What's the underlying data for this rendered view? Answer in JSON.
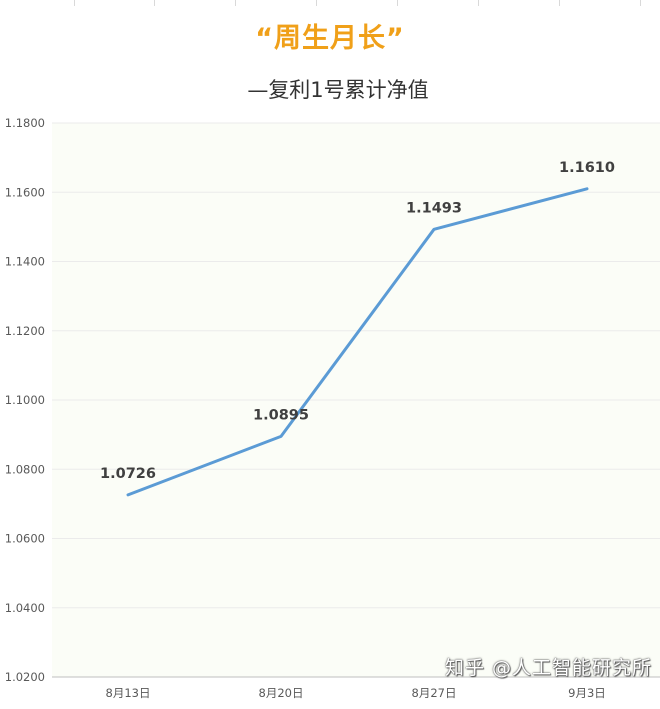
{
  "chart_data": {
    "type": "line",
    "title": "“周生月长”",
    "subtitle": "—复利1号累计净值",
    "categories": [
      "8月13日",
      "8月20日",
      "8月27日",
      "9月3日"
    ],
    "series": [
      {
        "values": [
          1.0726,
          1.0895,
          1.1493,
          1.161
        ]
      }
    ],
    "data_labels": [
      "1.0726",
      "1.0895",
      "1.1493",
      "1.1610"
    ],
    "ylim": [
      1.02,
      1.18
    ],
    "yticks": [
      "1.0200",
      "1.0400",
      "1.0600",
      "1.0800",
      "1.1000",
      "1.1200",
      "1.1400",
      "1.1600",
      "1.1800"
    ],
    "grid": true,
    "line_color": "#5b9bd5",
    "title_color": "#f0a019",
    "plot_background": "#fbfdf7"
  },
  "watermark": "知乎 @人工智能研究所"
}
